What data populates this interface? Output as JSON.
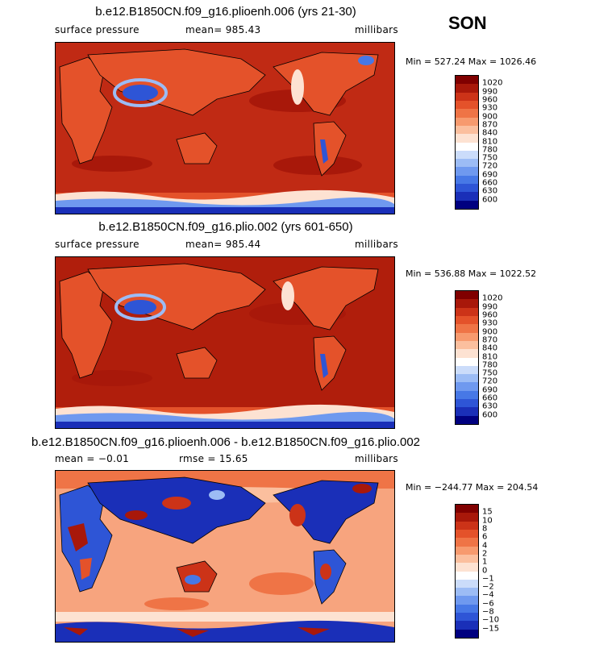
{
  "season": "SON",
  "palettes": {
    "abs": [
      "#000080",
      "#1a2fb8",
      "#2e55d6",
      "#4778e6",
      "#6f99ef",
      "#9cbcf5",
      "#cbdcfa",
      "#ffffff",
      "#fde2d2",
      "#fbbf9e",
      "#f79a6e",
      "#ef7446",
      "#e4522a",
      "#cc3318",
      "#a8180a",
      "#800000"
    ],
    "diff": [
      "#000080",
      "#1a2fb8",
      "#2e55d6",
      "#4778e6",
      "#6f99ef",
      "#9cbcf5",
      "#cbdcfa",
      "#ffffff",
      "#fde2d2",
      "#fbbf9e",
      "#f79a6e",
      "#ef7446",
      "#e4522a",
      "#cc3318",
      "#a8180a",
      "#800000"
    ]
  },
  "panels": [
    {
      "title": "b.e12.B1850CN.f09_g16.plioenh.006 (yrs 21-30)",
      "left": "surface pressure",
      "center": "mean=  985.43",
      "right": "millibars",
      "minmax": "Min = 527.24  Max = 1026.46",
      "ticks": [
        "1020",
        "990",
        "960",
        "930",
        "900",
        "870",
        "840",
        "810",
        "780",
        "750",
        "720",
        "690",
        "660",
        "630",
        "600"
      ],
      "kind": "abs"
    },
    {
      "title": "b.e12.B1850CN.f09_g16.plio.002 (yrs 601-650)",
      "left": "surface pressure",
      "center": "mean=  985.44",
      "right": "millibars",
      "minmax": "Min = 536.88  Max = 1022.52",
      "ticks": [
        "1020",
        "990",
        "960",
        "930",
        "900",
        "870",
        "840",
        "810",
        "780",
        "750",
        "720",
        "690",
        "660",
        "630",
        "600"
      ],
      "kind": "abs"
    },
    {
      "title": "b.e12.B1850CN.f09_g16.plioenh.006 - b.e12.B1850CN.f09_g16.plio.002",
      "left": "mean =  −0.01",
      "center": "rmse =   15.65",
      "right": "millibars",
      "minmax": "Min = −244.77  Max = 204.54",
      "ticks": [
        "15",
        "10",
        "8",
        "6",
        "4",
        "2",
        "1",
        "0",
        "−1",
        "−2",
        "−4",
        "−6",
        "−8",
        "−10",
        "−15"
      ],
      "kind": "diff"
    }
  ]
}
